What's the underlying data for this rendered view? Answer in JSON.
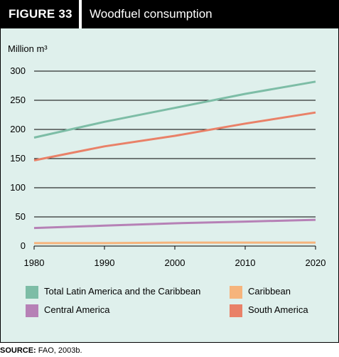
{
  "figure": {
    "label": "FIGURE  33",
    "title": "Woodfuel consumption"
  },
  "source": {
    "label": "SOURCE:",
    "text": "FAO, 2003b."
  },
  "chart_data": {
    "type": "line",
    "title": "Woodfuel consumption",
    "ylabel": "Million m³",
    "xlabel": "",
    "x_ticks": [
      "1980",
      "1990",
      "2000",
      "2010",
      "2020"
    ],
    "y_ticks": [
      "0",
      "50",
      "100",
      "150",
      "200",
      "250",
      "300"
    ],
    "xlim": [
      1980,
      2020
    ],
    "ylim": [
      0,
      300
    ],
    "grid": "horizontal",
    "legend_position": "bottom",
    "series": [
      {
        "name": "Total Latin America and the Caribbean",
        "color": "#7dbda6",
        "x": [
          1980,
          1990,
          2000,
          2010,
          2020
        ],
        "values": [
          186,
          213,
          237,
          261,
          282
        ]
      },
      {
        "name": "Caribbean",
        "color": "#f6b47c",
        "x": [
          1980,
          1990,
          2000,
          2010,
          2020
        ],
        "values": [
          5,
          5,
          6,
          6,
          6
        ]
      },
      {
        "name": "Central America",
        "color": "#b681b6",
        "x": [
          1980,
          1990,
          2000,
          2010,
          2020
        ],
        "values": [
          31,
          35,
          39,
          42,
          45
        ]
      },
      {
        "name": "South America",
        "color": "#e98168",
        "x": [
          1980,
          1990,
          2000,
          2010,
          2020
        ],
        "values": [
          147,
          171,
          189,
          210,
          229
        ]
      }
    ]
  }
}
